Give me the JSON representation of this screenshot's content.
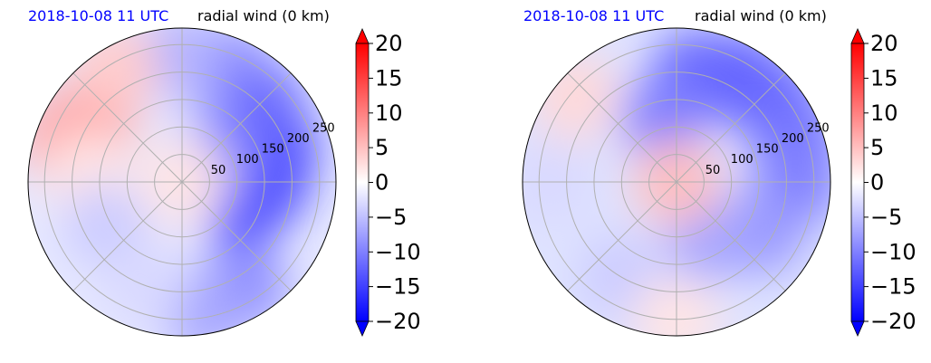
{
  "chart_data": [
    {
      "type": "heatmap",
      "projection": "polar",
      "title_left": "2018-10-08 11 UTC",
      "title_right": "radial wind (0 km)",
      "radial_ticks": [
        50,
        100,
        150,
        200,
        250
      ],
      "radial_max": 280,
      "grid": true,
      "colorbar": {
        "ticks": [
          20,
          15,
          10,
          5,
          0,
          -5,
          -10,
          -15,
          -20
        ],
        "range": [
          -20,
          20
        ],
        "colormap": "bwr",
        "extend": "both"
      },
      "field_blobs": [
        {
          "angle_deg": 0,
          "radius": 150,
          "value": -16
        },
        {
          "angle_deg": 20,
          "radius": 180,
          "value": -14
        },
        {
          "angle_deg": -20,
          "radius": 120,
          "value": -14
        },
        {
          "angle_deg": 45,
          "radius": 200,
          "value": -12
        },
        {
          "angle_deg": 70,
          "radius": 220,
          "value": -10
        },
        {
          "angle_deg": 90,
          "radius": 230,
          "value": -6
        },
        {
          "angle_deg": 30,
          "radius": 70,
          "value": -9
        },
        {
          "angle_deg": -60,
          "radius": 220,
          "value": -9
        },
        {
          "angle_deg": -80,
          "radius": 240,
          "value": -7
        },
        {
          "angle_deg": 145,
          "radius": 200,
          "value": 8
        },
        {
          "angle_deg": 160,
          "radius": 230,
          "value": 7
        },
        {
          "angle_deg": 120,
          "radius": 240,
          "value": 4
        },
        {
          "angle_deg": 175,
          "radius": 170,
          "value": 2
        },
        {
          "angle_deg": 210,
          "radius": 160,
          "value": -4
        },
        {
          "angle_deg": 250,
          "radius": 200,
          "value": -3
        },
        {
          "angle_deg": 0,
          "radius": 0,
          "value": 2
        }
      ]
    },
    {
      "type": "heatmap",
      "projection": "polar",
      "title_left": "2018-10-08 11 UTC",
      "title_right": "radial wind (0 km)",
      "radial_ticks": [
        50,
        100,
        150,
        200,
        250
      ],
      "radial_max": 280,
      "grid": true,
      "colorbar": {
        "ticks": [
          20,
          15,
          10,
          5,
          0,
          -5,
          -10,
          -15,
          -20
        ],
        "range": [
          -20,
          20
        ],
        "colormap": "bwr",
        "extend": "both"
      },
      "field_blobs": [
        {
          "angle_deg": 60,
          "radius": 220,
          "value": -13
        },
        {
          "angle_deg": 80,
          "radius": 200,
          "value": -12
        },
        {
          "angle_deg": 40,
          "radius": 230,
          "value": -12
        },
        {
          "angle_deg": 20,
          "radius": 230,
          "value": -11
        },
        {
          "angle_deg": 0,
          "radius": 220,
          "value": -10
        },
        {
          "angle_deg": -30,
          "radius": 180,
          "value": -8
        },
        {
          "angle_deg": 100,
          "radius": 120,
          "value": -10
        },
        {
          "angle_deg": 140,
          "radius": 240,
          "value": 3
        },
        {
          "angle_deg": 180,
          "radius": 230,
          "value": -3
        },
        {
          "angle_deg": 240,
          "radius": 200,
          "value": -4
        },
        {
          "angle_deg": 270,
          "radius": 250,
          "value": 2
        },
        {
          "angle_deg": -60,
          "radius": 120,
          "value": -7
        },
        {
          "angle_deg": 0,
          "radius": 0,
          "value": 5
        }
      ]
    }
  ]
}
